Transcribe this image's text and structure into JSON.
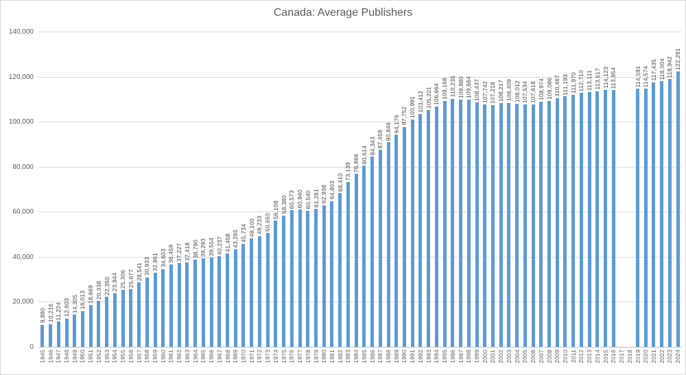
{
  "chart_data": {
    "type": "bar",
    "title": "Canada: Average Publishers",
    "categories": [
      "1945",
      "1946",
      "1947",
      "1948",
      "1949",
      "1950",
      "1951",
      "1952",
      "1953",
      "1954",
      "1955",
      "1956",
      "1957",
      "1958",
      "1959",
      "1960",
      "1961",
      "1962",
      "1963",
      "1964",
      "1965",
      "1966",
      "1967",
      "1968",
      "1969",
      "1970",
      "1971",
      "1972",
      "1973",
      "1974",
      "1975",
      "1976",
      "1977",
      "1978",
      "1979",
      "1980",
      "1981",
      "1982",
      "1983",
      "1984",
      "1985",
      "1986",
      "1987",
      "1988",
      "1989",
      "1990",
      "1991",
      "1992",
      "1993",
      "1994",
      "1995",
      "1996",
      "1997",
      "1998",
      "1999",
      "2000",
      "2001",
      "2002",
      "2003",
      "2004",
      "2005",
      "2006",
      "2007",
      "2008",
      "2009",
      "2010",
      "2011",
      "2012",
      "2013",
      "2014",
      "2015",
      "2016",
      "2017",
      "2018",
      "2019",
      "2020",
      "2021",
      "2022",
      "2023",
      "2024"
    ],
    "values": [
      9880,
      10216,
      11224,
      12603,
      14305,
      16013,
      18669,
      20338,
      22350,
      23944,
      25306,
      25677,
      28541,
      30933,
      32861,
      34603,
      36459,
      37227,
      37418,
      38790,
      39293,
      39554,
      40237,
      41458,
      43265,
      45734,
      48100,
      49233,
      50650,
      56108,
      58380,
      60573,
      60940,
      60540,
      61281,
      62938,
      64803,
      68410,
      73139,
      76866,
      80614,
      84343,
      87459,
      90846,
      94176,
      97752,
      100991,
      103412,
      105201,
      106664,
      109168,
      110235,
      109880,
      109664,
      108437,
      107742,
      107218,
      108217,
      108409,
      108012,
      107534,
      107618,
      108974,
      109086,
      110467,
      111193,
      111970,
      112710,
      113111,
      113617,
      114123,
      113954,
      null,
      null,
      114591,
      114574,
      117435,
      118004,
      118942,
      122291
    ],
    "xlabel": "",
    "ylabel": "",
    "ylim": [
      0,
      140000
    ],
    "ytick_interval": 20000,
    "ytick_labels": [
      "0",
      "20,000",
      "40,000",
      "60,000",
      "80,000",
      "100,000",
      "120,000",
      "140,000"
    ],
    "grid": true,
    "legend": "none",
    "data_labels": "rotated-90-above-bars",
    "bar_color": "#5b9bd5",
    "gridline_color": "#d9d9d9",
    "axis_line_color": "#bfbfbf",
    "title_color": "#595959",
    "tick_label_color": "#595959",
    "data_label_color": "#404040"
  }
}
